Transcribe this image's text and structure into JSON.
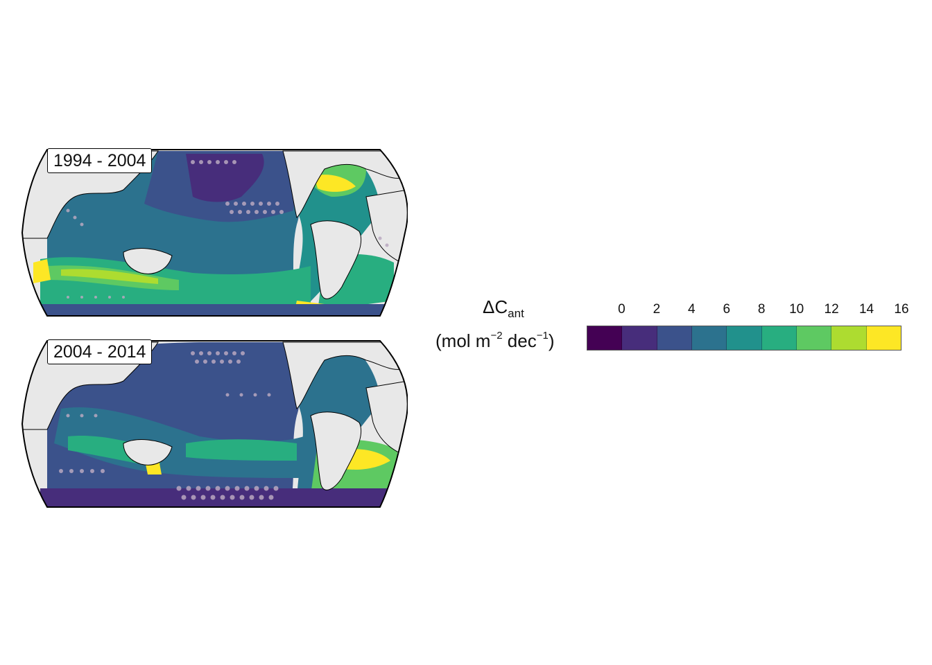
{
  "panels": [
    {
      "label": "1994 - 2004"
    },
    {
      "label": "2004 - 2014"
    }
  ],
  "legend": {
    "title_symbol": "ΔC",
    "title_subscript": "ant",
    "unit_prefix": "(mol m",
    "unit_exp1": "−2",
    "unit_mid": " dec",
    "unit_exp2": "−1",
    "unit_suffix": ")",
    "ticks": [
      "0",
      "2",
      "4",
      "6",
      "8",
      "10",
      "12",
      "14",
      "16"
    ],
    "colors": [
      "#440154",
      "#472d7b",
      "#3b528b",
      "#2c728e",
      "#21918c",
      "#28ae80",
      "#5ec962",
      "#addc30",
      "#fde725"
    ]
  }
}
